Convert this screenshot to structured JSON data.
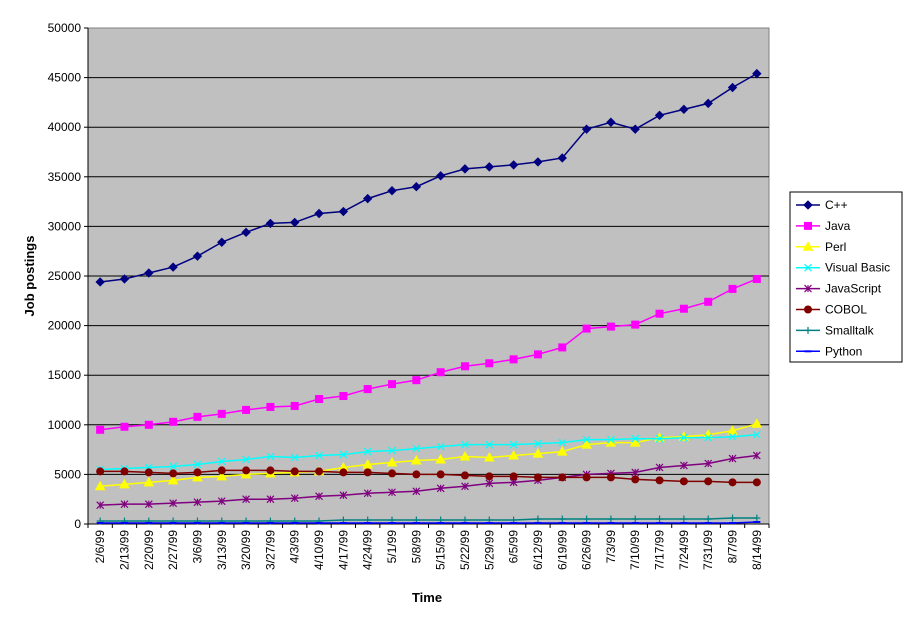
{
  "chart_data": {
    "type": "line",
    "title": "",
    "xlabel": "Time",
    "ylabel": "Job postings",
    "ylim": [
      0,
      50000
    ],
    "yticks": [
      0,
      5000,
      10000,
      15000,
      20000,
      25000,
      30000,
      35000,
      40000,
      45000,
      50000
    ],
    "grid": true,
    "legend_position": "right",
    "plot_background": "#c0c0c0",
    "categories": [
      "2/6/99",
      "2/13/99",
      "2/20/99",
      "2/27/99",
      "3/6/99",
      "3/13/99",
      "3/20/99",
      "3/27/99",
      "4/3/99",
      "4/10/99",
      "4/17/99",
      "4/24/99",
      "5/1/99",
      "5/8/99",
      "5/15/99",
      "5/22/99",
      "5/29/99",
      "6/5/99",
      "6/12/99",
      "6/19/99",
      "6/26/99",
      "7/3/99",
      "7/10/99",
      "7/17/99",
      "7/24/99",
      "7/31/99",
      "8/7/99",
      "8/14/99"
    ],
    "series": [
      {
        "name": "C++",
        "color": "#000080",
        "marker": "diamond",
        "values": [
          24400,
          24700,
          25300,
          25900,
          27000,
          28400,
          29400,
          30300,
          30400,
          31300,
          31500,
          32800,
          33600,
          34000,
          35100,
          35800,
          36000,
          36200,
          36500,
          36900,
          39800,
          40500,
          39800,
          41200,
          41800,
          42400,
          44000,
          45400
        ]
      },
      {
        "name": "Java",
        "color": "#ff00ff",
        "marker": "square",
        "values": [
          9500,
          9800,
          10000,
          10300,
          10800,
          11100,
          11500,
          11800,
          11900,
          12600,
          12900,
          13600,
          14100,
          14500,
          15300,
          15900,
          16200,
          16600,
          17100,
          17800,
          19700,
          19900,
          20100,
          21200,
          21700,
          22400,
          23700,
          24700
        ]
      },
      {
        "name": "Perl",
        "color": "#ffff00",
        "marker": "triangle",
        "values": [
          3800,
          4000,
          4200,
          4400,
          4700,
          4800,
          5000,
          5100,
          5200,
          5300,
          5700,
          6000,
          6200,
          6400,
          6500,
          6800,
          6700,
          6900,
          7100,
          7300,
          8000,
          8200,
          8200,
          8700,
          8800,
          9000,
          9400,
          10100
        ]
      },
      {
        "name": "Visual Basic",
        "color": "#00ffff",
        "marker": "x",
        "values": [
          5500,
          5600,
          5700,
          5800,
          6000,
          6300,
          6500,
          6800,
          6700,
          6900,
          7000,
          7300,
          7400,
          7600,
          7800,
          8000,
          8000,
          8000,
          8100,
          8200,
          8500,
          8500,
          8600,
          8600,
          8700,
          8700,
          8800,
          9000
        ]
      },
      {
        "name": "JavaScript",
        "color": "#800080",
        "marker": "star",
        "values": [
          1900,
          2000,
          2000,
          2100,
          2200,
          2300,
          2500,
          2500,
          2600,
          2800,
          2900,
          3100,
          3200,
          3300,
          3600,
          3800,
          4100,
          4200,
          4400,
          4700,
          5000,
          5100,
          5200,
          5700,
          5900,
          6100,
          6600,
          6900
        ]
      },
      {
        "name": "COBOL",
        "color": "#800000",
        "marker": "circle",
        "values": [
          5300,
          5300,
          5200,
          5100,
          5200,
          5400,
          5400,
          5400,
          5300,
          5300,
          5200,
          5200,
          5100,
          5000,
          5000,
          4900,
          4800,
          4800,
          4700,
          4700,
          4700,
          4700,
          4500,
          4400,
          4300,
          4300,
          4200,
          4200
        ]
      },
      {
        "name": "Smalltalk",
        "color": "#008080",
        "marker": "plus",
        "values": [
          300,
          300,
          300,
          300,
          300,
          300,
          300,
          300,
          300,
          300,
          400,
          400,
          400,
          400,
          400,
          400,
          400,
          400,
          500,
          500,
          500,
          500,
          500,
          500,
          500,
          500,
          600,
          600
        ]
      },
      {
        "name": "Python",
        "color": "#0000ff",
        "marker": "dash",
        "values": [
          100,
          100,
          100,
          100,
          100,
          100,
          100,
          100,
          100,
          100,
          100,
          100,
          100,
          100,
          100,
          100,
          100,
          100,
          100,
          100,
          100,
          100,
          100,
          100,
          100,
          100,
          100,
          200
        ]
      }
    ]
  }
}
